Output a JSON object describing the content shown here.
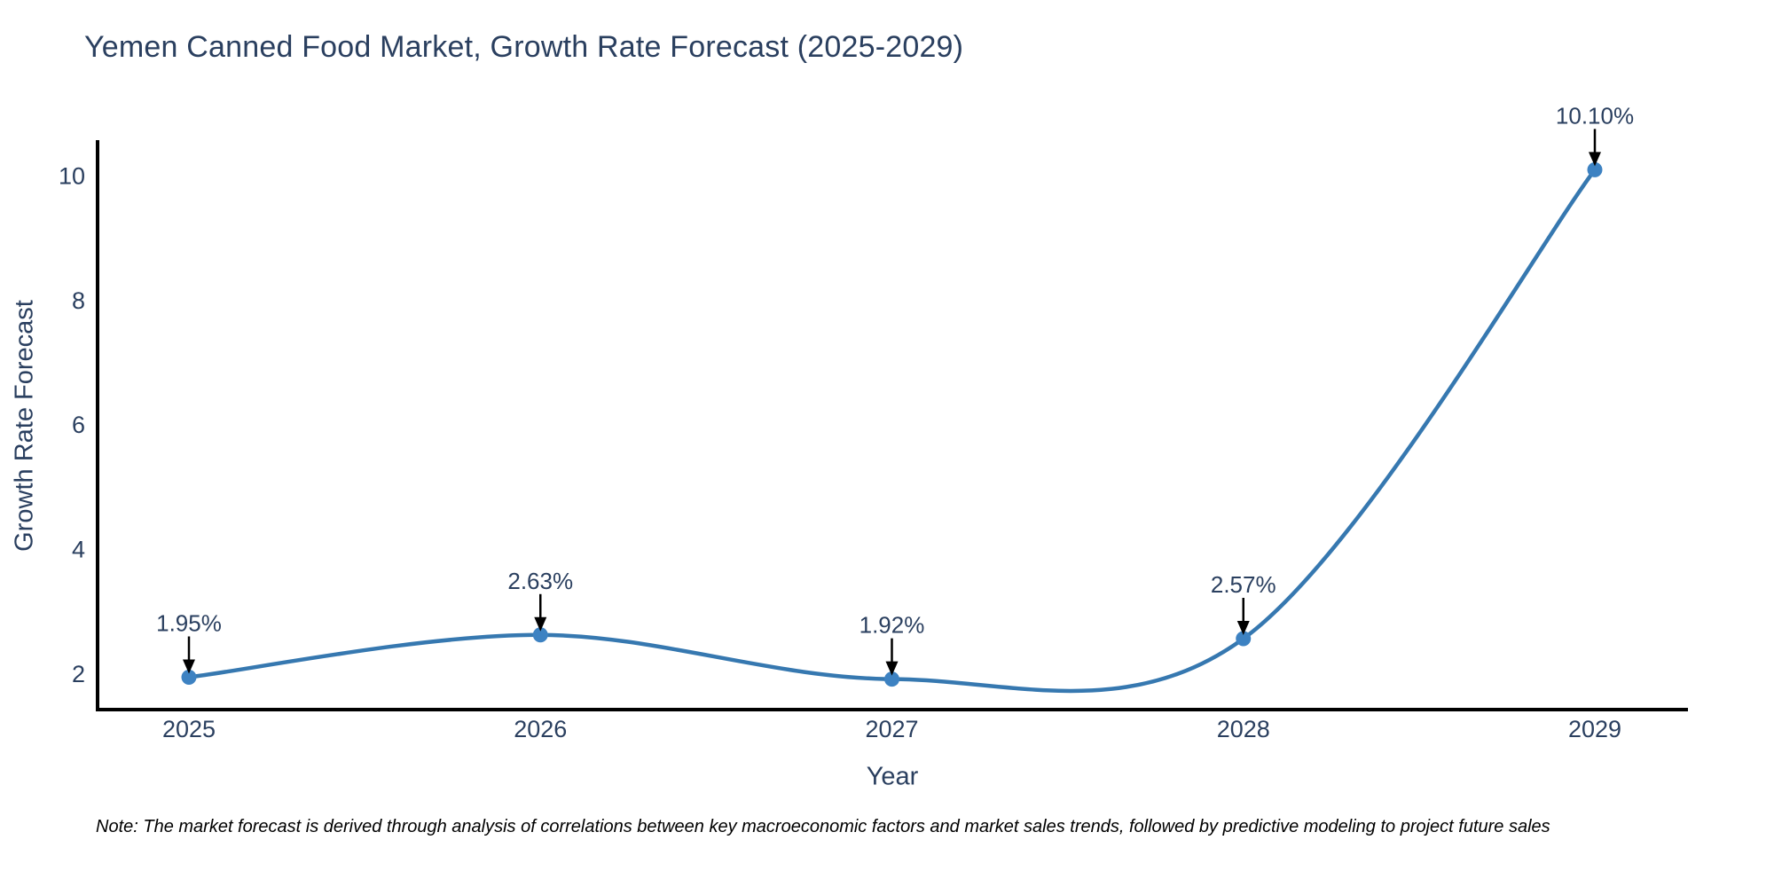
{
  "chart_data": {
    "type": "line",
    "title": "Yemen Canned Food Market, Growth Rate Forecast (2025-2029)",
    "xlabel": "Year",
    "ylabel": "Growth Rate Forecast",
    "x": [
      2025,
      2026,
      2027,
      2028,
      2029
    ],
    "series": [
      {
        "name": "Growth Rate Forecast",
        "values": [
          1.95,
          2.63,
          1.92,
          2.57,
          10.1
        ]
      }
    ],
    "point_labels": [
      "1.95%",
      "2.63%",
      "1.92%",
      "2.57%",
      "10.10%"
    ],
    "yticks": [
      2,
      4,
      6,
      8,
      10
    ],
    "ylim": [
      1.4,
      10.6
    ],
    "line_shape": "spline",
    "grid": false,
    "legend_position": "none",
    "colors": {
      "line": "#3678b0",
      "marker": "#3d82c2",
      "axis": "#000000",
      "text": "#2a3f5f",
      "arrow": "#000000",
      "background": "#ffffff"
    }
  },
  "note": "Note: The market forecast is derived through analysis of correlations between key macroeconomic factors and market sales trends, followed by predictive modeling to project future sales"
}
